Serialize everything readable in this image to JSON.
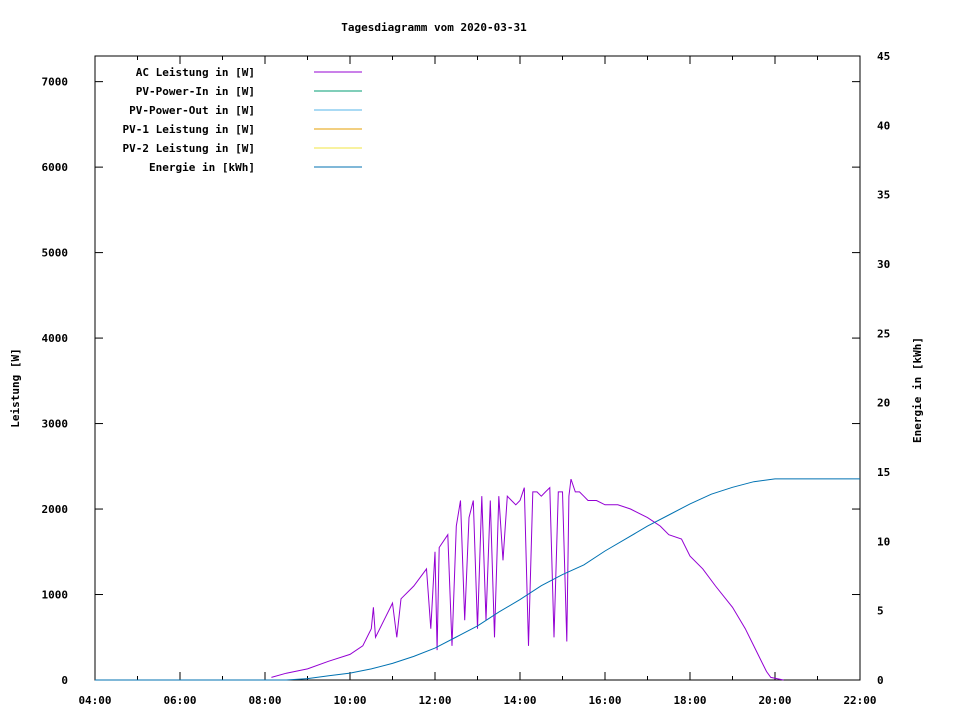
{
  "chart_data": {
    "type": "line",
    "title": "Tagesdiagramm vom 2020-03-31",
    "ylabel": "Leistung [W]",
    "y2label": "Energie in [kWh]",
    "x_ticks": [
      "04:00",
      "06:00",
      "08:00",
      "10:00",
      "12:00",
      "14:00",
      "16:00",
      "18:00",
      "20:00",
      "22:00"
    ],
    "xlim_hours": [
      4,
      22
    ],
    "y_ticks": [
      0,
      1000,
      2000,
      3000,
      4000,
      5000,
      6000,
      7000
    ],
    "ylim": [
      0,
      7300
    ],
    "y2_ticks": [
      0,
      5,
      10,
      15,
      20,
      25,
      30,
      35,
      40,
      45
    ],
    "y2lim": [
      0,
      45
    ],
    "legend_position": "top-left",
    "series": [
      {
        "name": "AC Leistung in [W]",
        "color": "#9400d3",
        "axis": "left",
        "points": [
          [
            8.15,
            30
          ],
          [
            8.5,
            80
          ],
          [
            9,
            130
          ],
          [
            9.5,
            220
          ],
          [
            10,
            300
          ],
          [
            10.3,
            400
          ],
          [
            10.5,
            600
          ],
          [
            10.55,
            850
          ],
          [
            10.6,
            500
          ],
          [
            10.8,
            700
          ],
          [
            11,
            900
          ],
          [
            11.1,
            500
          ],
          [
            11.2,
            950
          ],
          [
            11.5,
            1100
          ],
          [
            11.8,
            1300
          ],
          [
            11.9,
            600
          ],
          [
            12,
            1500
          ],
          [
            12.05,
            350
          ],
          [
            12.1,
            1550
          ],
          [
            12.3,
            1700
          ],
          [
            12.4,
            400
          ],
          [
            12.5,
            1800
          ],
          [
            12.6,
            2100
          ],
          [
            12.7,
            700
          ],
          [
            12.8,
            1900
          ],
          [
            12.9,
            2100
          ],
          [
            13.0,
            600
          ],
          [
            13.1,
            2150
          ],
          [
            13.2,
            700
          ],
          [
            13.3,
            2100
          ],
          [
            13.4,
            500
          ],
          [
            13.5,
            2150
          ],
          [
            13.6,
            1400
          ],
          [
            13.7,
            2150
          ],
          [
            13.8,
            2100
          ],
          [
            13.9,
            2050
          ],
          [
            14.0,
            2100
          ],
          [
            14.1,
            2250
          ],
          [
            14.2,
            400
          ],
          [
            14.3,
            2200
          ],
          [
            14.4,
            2200
          ],
          [
            14.5,
            2150
          ],
          [
            14.6,
            2200
          ],
          [
            14.7,
            2250
          ],
          [
            14.8,
            500
          ],
          [
            14.9,
            2200
          ],
          [
            15.0,
            2200
          ],
          [
            15.1,
            450
          ],
          [
            15.15,
            2150
          ],
          [
            15.2,
            2350
          ],
          [
            15.3,
            2200
          ],
          [
            15.4,
            2200
          ],
          [
            15.5,
            2150
          ],
          [
            15.6,
            2100
          ],
          [
            15.8,
            2100
          ],
          [
            16.0,
            2050
          ],
          [
            16.3,
            2050
          ],
          [
            16.6,
            2000
          ],
          [
            17.0,
            1900
          ],
          [
            17.3,
            1800
          ],
          [
            17.5,
            1700
          ],
          [
            17.8,
            1650
          ],
          [
            18.0,
            1450
          ],
          [
            18.3,
            1300
          ],
          [
            18.6,
            1100
          ],
          [
            19.0,
            850
          ],
          [
            19.3,
            600
          ],
          [
            19.6,
            300
          ],
          [
            19.8,
            100
          ],
          [
            19.9,
            30
          ],
          [
            20.2,
            0
          ]
        ]
      },
      {
        "name": "PV-Power-In in [W]",
        "color": "#009e73",
        "axis": "left",
        "points": []
      },
      {
        "name": "PV-Power-Out in [W]",
        "color": "#56b4e9",
        "axis": "left",
        "points": []
      },
      {
        "name": "PV-1 Leistung in [W]",
        "color": "#e69f00",
        "axis": "left",
        "points": []
      },
      {
        "name": "PV-2 Leistung in [W]",
        "color": "#f0e442",
        "axis": "left",
        "points": []
      },
      {
        "name": "Energie in [kWh]",
        "color": "#0072b2",
        "axis": "right",
        "points": [
          [
            4,
            0
          ],
          [
            8,
            0
          ],
          [
            8.5,
            0
          ],
          [
            9,
            0.1
          ],
          [
            9.5,
            0.3
          ],
          [
            10,
            0.5
          ],
          [
            10.5,
            0.8
          ],
          [
            11,
            1.2
          ],
          [
            11.5,
            1.7
          ],
          [
            12,
            2.3
          ],
          [
            12.5,
            3.1
          ],
          [
            13,
            3.9
          ],
          [
            13.5,
            4.9
          ],
          [
            14,
            5.8
          ],
          [
            14.5,
            6.8
          ],
          [
            15,
            7.6
          ],
          [
            15.5,
            8.3
          ],
          [
            16,
            9.3
          ],
          [
            16.5,
            10.2
          ],
          [
            17,
            11.1
          ],
          [
            17.5,
            11.9
          ],
          [
            18,
            12.7
          ],
          [
            18.5,
            13.4
          ],
          [
            19,
            13.9
          ],
          [
            19.5,
            14.3
          ],
          [
            20,
            14.5
          ],
          [
            22,
            14.5
          ]
        ]
      }
    ]
  }
}
